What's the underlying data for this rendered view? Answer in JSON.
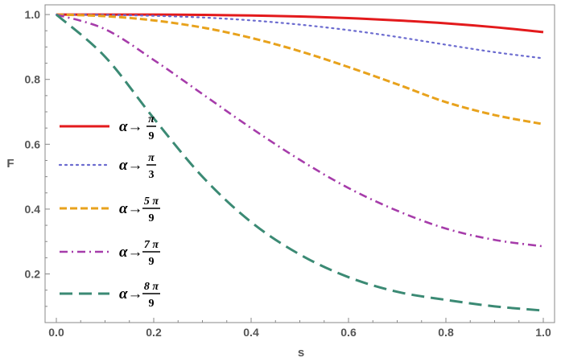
{
  "chart_data": {
    "type": "line",
    "xlabel": "s",
    "ylabel": "F",
    "xlim": [
      0,
      1
    ],
    "ylim": [
      0.05,
      1.03
    ],
    "x_ticks": [
      "0.0",
      "0.2",
      "0.4",
      "0.6",
      "0.8",
      "1.0"
    ],
    "y_ticks": [
      "0.2",
      "0.4",
      "0.6",
      "0.8",
      "1.0"
    ],
    "grid": false,
    "legend_position": "left",
    "x": [
      0,
      0.1,
      0.2,
      0.3,
      0.4,
      0.5,
      0.6,
      0.7,
      0.8,
      0.9,
      1.0
    ],
    "series": [
      {
        "name": "α→π/9",
        "legend_prefix": "α→",
        "legend_num": "π",
        "legend_den": "9",
        "color": "#e31a1c",
        "dash": "solid",
        "values": [
          1.0,
          1.0,
          1.0,
          0.999,
          0.997,
          0.994,
          0.989,
          0.982,
          0.973,
          0.961,
          0.946
        ]
      },
      {
        "name": "α→π/3",
        "legend_prefix": "α→",
        "legend_num": "π",
        "legend_den": "3",
        "color": "#6a6acf",
        "dash": "dotted",
        "values": [
          1.0,
          0.999,
          0.996,
          0.991,
          0.982,
          0.969,
          0.952,
          0.931,
          0.907,
          0.884,
          0.865
        ]
      },
      {
        "name": "α→5π/9",
        "legend_prefix": "α→",
        "legend_num": "5 π",
        "legend_den": "9",
        "color": "#e8a21c",
        "dash": "dashed",
        "values": [
          1.0,
          0.995,
          0.982,
          0.96,
          0.928,
          0.887,
          0.838,
          0.785,
          0.73,
          0.69,
          0.662
        ]
      },
      {
        "name": "α→7π/9",
        "legend_prefix": "α→",
        "legend_num": "7 π",
        "legend_den": "9",
        "color": "#a63caa",
        "dash": "dashdot",
        "values": [
          1.0,
          0.955,
          0.86,
          0.755,
          0.65,
          0.552,
          0.465,
          0.395,
          0.34,
          0.305,
          0.285
        ]
      },
      {
        "name": "α→8π/9",
        "legend_prefix": "α→",
        "legend_num": "8 π",
        "legend_den": "9",
        "color": "#3b8a74",
        "dash": "longdash",
        "values": [
          1.0,
          0.87,
          0.68,
          0.5,
          0.36,
          0.26,
          0.19,
          0.145,
          0.12,
          0.1,
          0.087
        ]
      }
    ]
  }
}
